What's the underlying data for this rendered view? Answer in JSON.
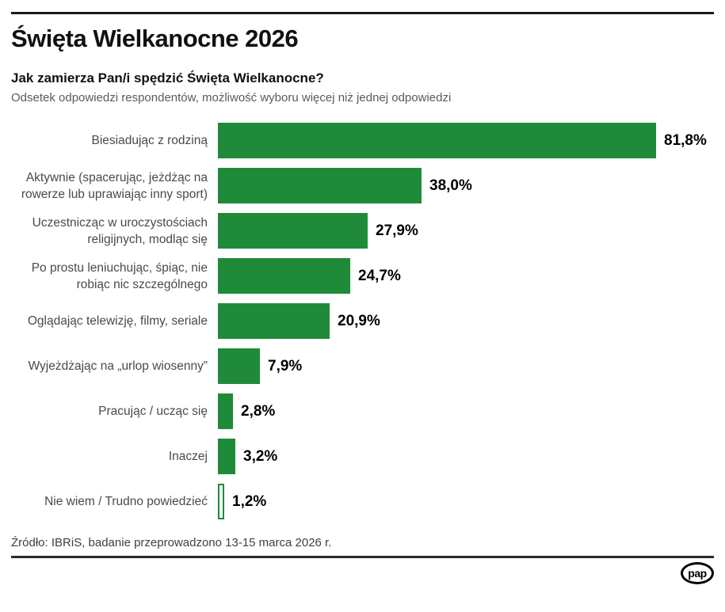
{
  "header": {
    "title": "Święta Wielkanocne 2026",
    "question": "Jak zamierza Pan/i spędzić Święta Wielkanocne?",
    "note": "Odsetek odpowiedzi respondentów, możliwość wyboru więcej niż jednej odpowiedzi"
  },
  "chart_data": {
    "type": "bar",
    "orientation": "horizontal",
    "title": "Jak zamierza Pan/i spędzić Święta Wielkanocne?",
    "xlabel": "",
    "ylabel": "",
    "xlim": [
      0,
      82
    ],
    "grid": false,
    "legend": false,
    "categories": [
      "Biesiadując z rodziną",
      "Aktywnie (spacerując, jeżdżąc na rowerze lub uprawiając inny sport)",
      "Uczestnicząc w uroczystościach religijnych, modląc się",
      "Po prostu leniuchując, śpiąc, nie robiąc nic szczególnego",
      "Oglądając telewizję, filmy, seriale",
      "Wyjeżdżając na „urlop wiosenny”",
      "Pracując / ucząc się",
      "Inaczej",
      "Nie wiem / Trudno powiedzieć"
    ],
    "values": [
      81.8,
      38.0,
      27.9,
      24.7,
      20.9,
      7.9,
      2.8,
      3.2,
      1.2
    ],
    "value_labels": [
      "81,8%",
      "38,0%",
      "27,9%",
      "24,7%",
      "20,9%",
      "7,9%",
      "2,8%",
      "3,2%",
      "1,2%"
    ],
    "bar_styles": [
      "filled",
      "filled",
      "filled",
      "filled",
      "filled",
      "filled",
      "filled",
      "filled",
      "outlined"
    ],
    "bar_color": "#1f8b3a",
    "outline_color": "#1f8b3a"
  },
  "footer": {
    "source": "Źródło: IBRiS, badanie przeprowadzono 13-15 marca 2026 r.",
    "logo_text": "pap"
  },
  "colors": {
    "bar_green": "#1f8b3a",
    "title_black": "#111111",
    "label_gray": "#4a4a4a",
    "note_gray": "#5a5a5a"
  }
}
